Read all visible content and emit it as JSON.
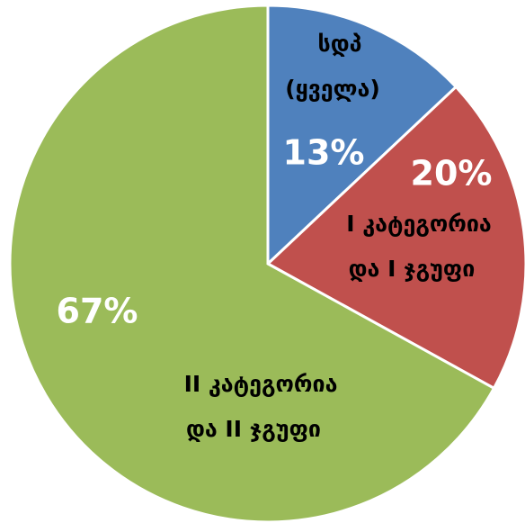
{
  "chart_data": {
    "type": "pie",
    "categories": [
      [
        "სდპ",
        "(ყველა)"
      ],
      [
        "I კატეგორია",
        "და I ჯგუფი"
      ],
      [
        "II კატეგორია",
        "და II ჯგუფი"
      ]
    ],
    "values": [
      13,
      20,
      67
    ],
    "value_labels": [
      "13%",
      "20%",
      "67%"
    ],
    "colors": [
      "#4f81bd",
      "#c0504d",
      "#9bbb59"
    ]
  }
}
